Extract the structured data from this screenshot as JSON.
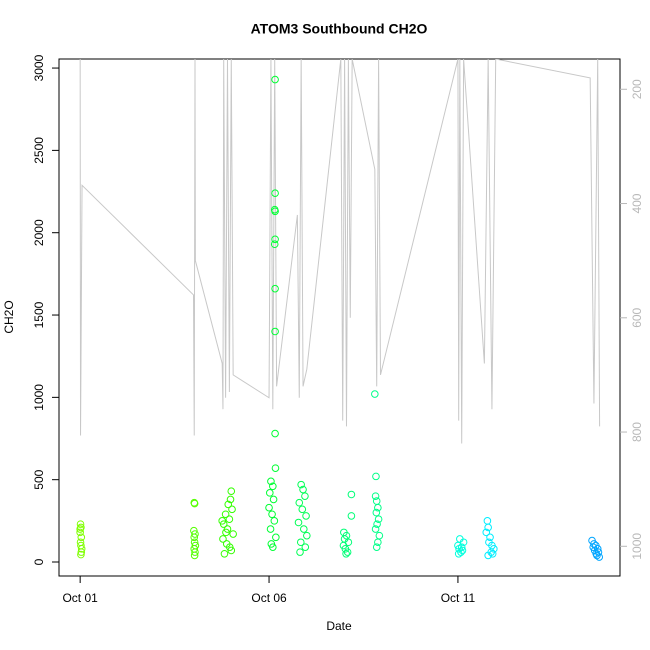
{
  "chart_data": {
    "type": "scatter",
    "title": "ATOM3 Southbound CH2O",
    "xlabel": "Date",
    "ylabel": "CH2O",
    "xlim": [
      -0.56,
      14.29
    ],
    "xticks": [
      {
        "value": 0,
        "label": "Oct 01"
      },
      {
        "value": 5,
        "label": "Oct 06"
      },
      {
        "value": 10,
        "label": "Oct 11"
      }
    ],
    "ylim": [
      -85,
      3055
    ],
    "yticks": [
      0,
      500,
      1000,
      1500,
      2000,
      2500,
      3000
    ],
    "y2lim": [
      1052,
      147
    ],
    "y2ticks": [
      200,
      400,
      600,
      800,
      1000
    ],
    "groups": [
      {
        "color": "#7FFF00",
        "x": [
          0.01,
          0.02,
          0.0,
          0.03,
          0.01,
          0.02,
          0.04,
          0.03,
          0.02,
          0.0
        ],
        "values": [
          230,
          210,
          180,
          150,
          120,
          100,
          80,
          60,
          45,
          200
        ]
      },
      {
        "color": "#55FF00",
        "x": [
          3.02,
          3.03,
          3.01,
          3.04,
          3.02,
          3.03,
          3.05,
          3.02,
          3.04,
          3.03
        ],
        "values": [
          360,
          355,
          190,
          170,
          150,
          120,
          100,
          80,
          60,
          40
        ]
      },
      {
        "color": "#33FF00",
        "x": [
          4.0,
          3.98,
          3.92,
          4.02,
          3.85,
          3.95,
          3.8,
          3.9,
          4.05,
          3.78,
          3.88,
          3.96,
          4.0,
          3.82,
          3.76,
          3.86
        ],
        "values": [
          430,
          380,
          350,
          320,
          290,
          260,
          230,
          200,
          170,
          140,
          110,
          90,
          70,
          50,
          250,
          180
        ]
      },
      {
        "color": "#00FF33",
        "x": [
          5.16,
          5.16,
          5.15,
          5.16,
          5.16,
          5.15,
          5.16,
          5.16,
          5.16,
          5.17,
          5.05,
          5.1,
          5.02,
          5.12,
          5.0,
          5.08,
          5.14,
          5.04,
          5.18,
          5.06,
          5.1
        ],
        "values": [
          2930,
          2240,
          2140,
          2130,
          1960,
          1930,
          1660,
          1400,
          780,
          570,
          490,
          460,
          420,
          380,
          330,
          290,
          250,
          200,
          150,
          110,
          90
        ]
      },
      {
        "color": "#00FF55",
        "x": [
          5.85,
          5.9,
          5.95,
          5.8,
          5.88,
          5.98,
          5.78,
          5.92,
          6.0,
          5.84,
          5.96,
          5.82
        ],
        "values": [
          470,
          440,
          400,
          360,
          320,
          280,
          240,
          200,
          160,
          120,
          90,
          60
        ]
      },
      {
        "color": "#00FF77",
        "x": [
          7.18,
          6.98,
          7.05,
          7.0,
          7.1,
          6.97,
          7.02,
          7.08,
          7.04,
          7.18
        ],
        "values": [
          410,
          180,
          160,
          140,
          120,
          100,
          80,
          60,
          50,
          280
        ]
      },
      {
        "color": "#00FF88",
        "x": [
          7.8,
          7.83,
          7.82,
          7.85,
          7.88,
          7.84,
          7.9,
          7.86,
          7.82,
          7.92,
          7.88,
          7.85
        ],
        "values": [
          1020,
          520,
          400,
          370,
          330,
          300,
          260,
          230,
          200,
          160,
          120,
          90
        ]
      },
      {
        "color": "#00FFDD",
        "x": [
          10.05,
          10.15,
          10.0,
          10.1,
          10.03,
          10.12,
          10.08,
          10.02
        ],
        "values": [
          140,
          120,
          100,
          90,
          80,
          70,
          60,
          50
        ]
      },
      {
        "color": "#00EEFF",
        "x": [
          10.78,
          10.8,
          10.75,
          10.85,
          10.82,
          10.9,
          10.95,
          10.88,
          10.92,
          10.8
        ],
        "values": [
          250,
          210,
          180,
          150,
          120,
          100,
          80,
          60,
          50,
          40
        ]
      },
      {
        "color": "#00A5FF",
        "x": [
          13.55,
          13.6,
          13.65,
          13.58,
          13.7,
          13.62,
          13.72,
          13.66,
          13.68,
          13.74
        ],
        "values": [
          130,
          110,
          100,
          90,
          80,
          70,
          60,
          50,
          40,
          30
        ]
      }
    ],
    "line": {
      "type": "line",
      "axis": "y2",
      "color": "#c8c8c8",
      "x": [
        0,
        0.01,
        0.05,
        3.0,
        3.02,
        3.04,
        3.05,
        3.76,
        3.78,
        3.8,
        3.85,
        3.9,
        3.95,
        4.0,
        4.05,
        5.0,
        5.05,
        5.1,
        5.15,
        5.2,
        5.75,
        5.8,
        5.85,
        5.9,
        6.0,
        6.9,
        6.95,
        7.0,
        7.05,
        7.1,
        7.15,
        7.2,
        7.8,
        7.85,
        7.9,
        7.95,
        10.0,
        10.02,
        10.05,
        10.1,
        10.15,
        10.7,
        10.8,
        10.9,
        11.0,
        13.5,
        13.6,
        13.7,
        13.75
      ],
      "values": [
        147,
        806,
        368,
        560,
        806,
        147,
        500,
        680,
        760,
        147,
        740,
        147,
        730,
        147,
        700,
        740,
        147,
        760,
        147,
        720,
        420,
        740,
        147,
        720,
        690,
        147,
        780,
        147,
        790,
        147,
        600,
        147,
        340,
        720,
        147,
        700,
        147,
        780,
        147,
        820,
        147,
        680,
        147,
        760,
        147,
        180,
        750,
        147,
        790
      ]
    }
  }
}
